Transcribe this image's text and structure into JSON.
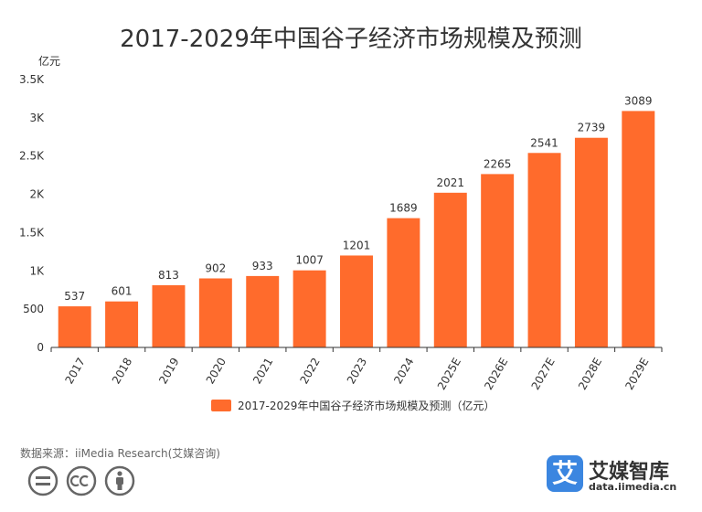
{
  "chart_data": {
    "type": "bar",
    "title": "2017-2029年中国谷子经济市场规模及预测",
    "ylabel": "亿元",
    "categories": [
      "2017",
      "2018",
      "2019",
      "2020",
      "2021",
      "2022",
      "2023",
      "2024",
      "2025E",
      "2026E",
      "2027E",
      "2028E",
      "2029E"
    ],
    "series": [
      {
        "name": "2017-2029年中国谷子经济市场规模及预测（亿元）",
        "values": [
          537,
          601,
          813,
          902,
          933,
          1007,
          1201,
          1689,
          2021,
          2265,
          2541,
          2739,
          3089
        ],
        "color": "#ff6b2c"
      }
    ],
    "ylim": [
      0,
      3500
    ],
    "yticks": [
      {
        "value": 0,
        "label": "0"
      },
      {
        "value": 500,
        "label": "500"
      },
      {
        "value": 1000,
        "label": "1K"
      },
      {
        "value": 1500,
        "label": "1.5K"
      },
      {
        "value": 2000,
        "label": "2K"
      },
      {
        "value": 2500,
        "label": "2.5K"
      },
      {
        "value": 3000,
        "label": "3K"
      },
      {
        "value": 3500,
        "label": "3.5K"
      }
    ],
    "grid": false,
    "legend_position": "bottom"
  },
  "source_text": "数据来源：iiMedia Research(艾媒咨询)",
  "brand": {
    "logo_char": "艾",
    "name": "艾媒智库",
    "url": "data.iimedia.cn"
  },
  "colors": {
    "bar": "#ff6b2c",
    "text": "#333333",
    "axis": "#333333"
  }
}
